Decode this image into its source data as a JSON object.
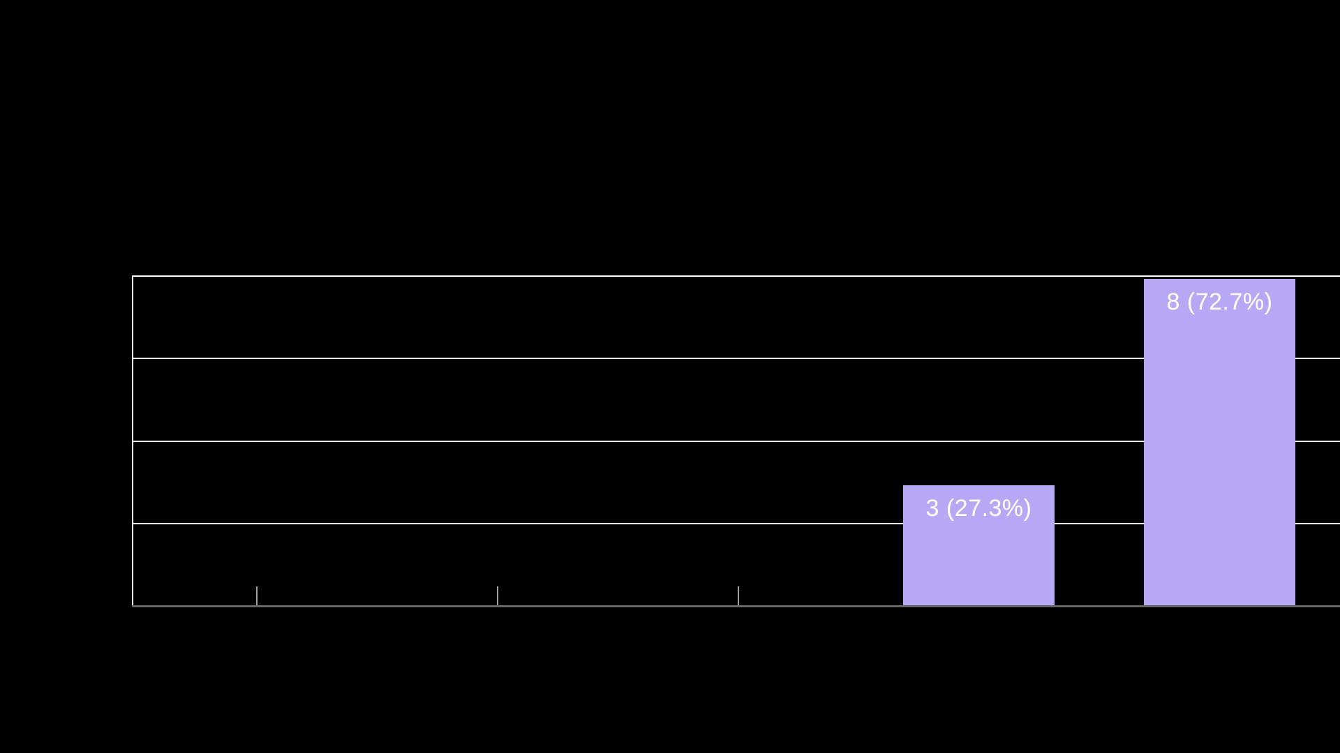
{
  "page": {
    "background": "#000000"
  },
  "chart_data": {
    "type": "bar",
    "title": "",
    "categories": [
      "",
      "",
      "",
      "",
      ""
    ],
    "values": [
      0,
      0,
      0,
      3,
      8
    ],
    "bar_labels": [
      "",
      "",
      "",
      "3 (27.3%)",
      "8 (72.7%)"
    ],
    "ylim": [
      0,
      8
    ],
    "y_gridline_step": 2,
    "grid": true,
    "legend": false,
    "layout_hints": {
      "bars_visible": 2,
      "x_ticks_visible": 3,
      "ticks_point_inward": true,
      "gridlines_extend_to_right_edge": true,
      "axis_text_not_visible_on_black_background": true
    },
    "colors": {
      "background": "#000000",
      "bar": "#b7a8f6",
      "gridline": "#ffffff",
      "y_axis": "#ffffff",
      "x_axis": "#666666",
      "tick": "#a0a0a0",
      "bar_label": "#ffffff"
    }
  }
}
